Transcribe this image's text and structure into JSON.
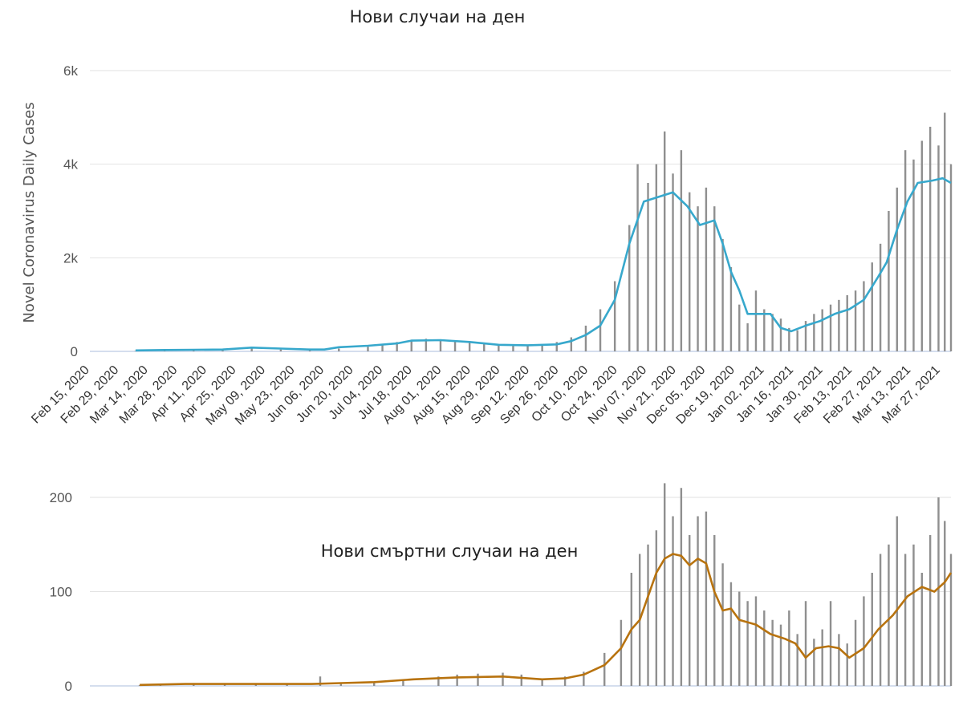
{
  "colors": {
    "bars": "#8f8f8f",
    "cases_line": "#37a8cc",
    "deaths_line": "#b8730f",
    "grid": "#e2e2e2",
    "baseline": "#c7d3e8"
  },
  "chart_data": [
    {
      "type": "bar",
      "title": "Нови случаи на ден",
      "ylabel": "Novel Coronavirus Daily Cases",
      "ylim": [
        0,
        6000
      ],
      "y_ticks": [
        "0",
        "2k",
        "4k",
        "6k"
      ],
      "x_ticks": [
        "Feb 15, 2020",
        "Feb 29, 2020",
        "Mar 14, 2020",
        "Mar 28, 2020",
        "Apr 11, 2020",
        "Apr 25, 2020",
        "May 09, 2020",
        "May 23, 2020",
        "Jun 06, 2020",
        "Jun 20, 2020",
        "Jul 04, 2020",
        "Jul 18, 2020",
        "Aug 01, 2020",
        "Aug 15, 2020",
        "Aug 29, 2020",
        "Sep 12, 2020",
        "Sep 26, 2020",
        "Oct 10, 2020",
        "Oct 24, 2020",
        "Nov 07, 2020",
        "Nov 21, 2020",
        "Dec 05, 2020",
        "Dec 19, 2020",
        "Jan 02, 2021",
        "Jan 16, 2021",
        "Jan 30, 2021",
        "Feb 13, 2021",
        "Feb 27, 2021",
        "Mar 13, 2021",
        "Mar 27, 2021"
      ],
      "x_range": [
        "2020-02-15",
        "2021-04-05"
      ],
      "series": [
        {
          "kind": "bars",
          "points": [
            [
              "2020-03-08",
              10
            ],
            [
              "2020-03-22",
              35
            ],
            [
              "2020-04-05",
              40
            ],
            [
              "2020-04-19",
              50
            ],
            [
              "2020-05-03",
              60
            ],
            [
              "2020-05-17",
              40
            ],
            [
              "2020-05-31",
              30
            ],
            [
              "2020-06-14",
              60
            ],
            [
              "2020-06-28",
              100
            ],
            [
              "2020-07-05",
              130
            ],
            [
              "2020-07-12",
              200
            ],
            [
              "2020-07-19",
              250
            ],
            [
              "2020-07-26",
              270
            ],
            [
              "2020-08-02",
              250
            ],
            [
              "2020-08-09",
              230
            ],
            [
              "2020-08-16",
              200
            ],
            [
              "2020-08-23",
              170
            ],
            [
              "2020-08-30",
              150
            ],
            [
              "2020-09-06",
              140
            ],
            [
              "2020-09-13",
              140
            ],
            [
              "2020-09-20",
              150
            ],
            [
              "2020-09-27",
              200
            ],
            [
              "2020-10-04",
              300
            ],
            [
              "2020-10-11",
              550
            ],
            [
              "2020-10-18",
              900
            ],
            [
              "2020-10-25",
              1500
            ],
            [
              "2020-11-01",
              2700
            ],
            [
              "2020-11-05",
              4000
            ],
            [
              "2020-11-10",
              3600
            ],
            [
              "2020-11-14",
              4000
            ],
            [
              "2020-11-18",
              4700
            ],
            [
              "2020-11-22",
              3800
            ],
            [
              "2020-11-26",
              4300
            ],
            [
              "2020-11-30",
              3400
            ],
            [
              "2020-12-04",
              3100
            ],
            [
              "2020-12-08",
              3500
            ],
            [
              "2020-12-12",
              3100
            ],
            [
              "2020-12-16",
              2400
            ],
            [
              "2020-12-20",
              1800
            ],
            [
              "2020-12-24",
              1000
            ],
            [
              "2020-12-28",
              600
            ],
            [
              "2021-01-01",
              1300
            ],
            [
              "2021-01-05",
              900
            ],
            [
              "2021-01-09",
              800
            ],
            [
              "2021-01-13",
              700
            ],
            [
              "2021-01-17",
              500
            ],
            [
              "2021-01-21",
              450
            ],
            [
              "2021-01-25",
              650
            ],
            [
              "2021-01-29",
              800
            ],
            [
              "2021-02-02",
              900
            ],
            [
              "2021-02-06",
              1000
            ],
            [
              "2021-02-10",
              1100
            ],
            [
              "2021-02-14",
              1200
            ],
            [
              "2021-02-18",
              1300
            ],
            [
              "2021-02-22",
              1500
            ],
            [
              "2021-02-26",
              1900
            ],
            [
              "2021-03-02",
              2300
            ],
            [
              "2021-03-06",
              3000
            ],
            [
              "2021-03-10",
              3500
            ],
            [
              "2021-03-14",
              4300
            ],
            [
              "2021-03-18",
              4100
            ],
            [
              "2021-03-22",
              4500
            ],
            [
              "2021-03-26",
              4800
            ],
            [
              "2021-03-30",
              4400
            ],
            [
              "2021-04-02",
              5100
            ],
            [
              "2021-04-05",
              4000
            ]
          ]
        },
        {
          "kind": "line",
          "points": [
            [
              "2020-03-08",
              20
            ],
            [
              "2020-03-22",
              30
            ],
            [
              "2020-04-05",
              35
            ],
            [
              "2020-04-19",
              40
            ],
            [
              "2020-05-03",
              80
            ],
            [
              "2020-05-17",
              60
            ],
            [
              "2020-05-31",
              40
            ],
            [
              "2020-06-07",
              40
            ],
            [
              "2020-06-14",
              90
            ],
            [
              "2020-06-28",
              120
            ],
            [
              "2020-07-12",
              170
            ],
            [
              "2020-07-19",
              230
            ],
            [
              "2020-08-02",
              240
            ],
            [
              "2020-08-16",
              200
            ],
            [
              "2020-08-30",
              140
            ],
            [
              "2020-09-13",
              130
            ],
            [
              "2020-09-27",
              150
            ],
            [
              "2020-10-04",
              220
            ],
            [
              "2020-10-11",
              350
            ],
            [
              "2020-10-18",
              550
            ],
            [
              "2020-10-25",
              1100
            ],
            [
              "2020-11-01",
              2300
            ],
            [
              "2020-11-08",
              3200
            ],
            [
              "2020-11-15",
              3300
            ],
            [
              "2020-11-22",
              3400
            ],
            [
              "2020-11-29",
              3100
            ],
            [
              "2020-12-05",
              2700
            ],
            [
              "2020-12-12",
              2800
            ],
            [
              "2020-12-16",
              2300
            ],
            [
              "2020-12-20",
              1700
            ],
            [
              "2020-12-24",
              1300
            ],
            [
              "2020-12-28",
              800
            ],
            [
              "2021-01-03",
              800
            ],
            [
              "2021-01-08",
              800
            ],
            [
              "2021-01-13",
              500
            ],
            [
              "2021-01-18",
              430
            ],
            [
              "2021-01-25",
              550
            ],
            [
              "2021-02-01",
              650
            ],
            [
              "2021-02-08",
              800
            ],
            [
              "2021-02-15",
              900
            ],
            [
              "2021-02-22",
              1100
            ],
            [
              "2021-03-01",
              1600
            ],
            [
              "2021-03-05",
              1900
            ],
            [
              "2021-03-10",
              2600
            ],
            [
              "2021-03-15",
              3200
            ],
            [
              "2021-03-20",
              3600
            ],
            [
              "2021-03-27",
              3650
            ],
            [
              "2021-04-01",
              3700
            ],
            [
              "2021-04-05",
              3600
            ]
          ]
        }
      ]
    },
    {
      "type": "bar",
      "title": "Нови смъртни случаи на ден",
      "ylabel": "",
      "ylim": [
        0,
        200
      ],
      "y_ticks": [
        "0",
        "100",
        "200"
      ],
      "x_range": [
        "2020-02-15",
        "2021-04-05"
      ],
      "series": [
        {
          "kind": "bars",
          "points": [
            [
              "2020-03-10",
              1
            ],
            [
              "2020-03-20",
              2
            ],
            [
              "2020-04-05",
              3
            ],
            [
              "2020-04-20",
              3
            ],
            [
              "2020-05-05",
              3
            ],
            [
              "2020-05-20",
              2
            ],
            [
              "2020-06-05",
              10
            ],
            [
              "2020-06-15",
              3
            ],
            [
              "2020-07-01",
              4
            ],
            [
              "2020-07-15",
              7
            ],
            [
              "2020-08-01",
              10
            ],
            [
              "2020-08-10",
              12
            ],
            [
              "2020-08-20",
              13
            ],
            [
              "2020-09-01",
              14
            ],
            [
              "2020-09-10",
              12
            ],
            [
              "2020-09-20",
              8
            ],
            [
              "2020-10-01",
              10
            ],
            [
              "2020-10-10",
              15
            ],
            [
              "2020-10-20",
              35
            ],
            [
              "2020-10-28",
              70
            ],
            [
              "2020-11-02",
              120
            ],
            [
              "2020-11-06",
              140
            ],
            [
              "2020-11-10",
              150
            ],
            [
              "2020-11-14",
              165
            ],
            [
              "2020-11-18",
              215
            ],
            [
              "2020-11-22",
              180
            ],
            [
              "2020-11-26",
              210
            ],
            [
              "2020-11-30",
              160
            ],
            [
              "2020-12-04",
              180
            ],
            [
              "2020-12-08",
              185
            ],
            [
              "2020-12-12",
              160
            ],
            [
              "2020-12-16",
              130
            ],
            [
              "2020-12-20",
              110
            ],
            [
              "2020-12-24",
              100
            ],
            [
              "2020-12-28",
              90
            ],
            [
              "2021-01-01",
              95
            ],
            [
              "2021-01-05",
              80
            ],
            [
              "2021-01-09",
              70
            ],
            [
              "2021-01-13",
              65
            ],
            [
              "2021-01-17",
              80
            ],
            [
              "2021-01-21",
              55
            ],
            [
              "2021-01-25",
              90
            ],
            [
              "2021-01-29",
              50
            ],
            [
              "2021-02-02",
              60
            ],
            [
              "2021-02-06",
              90
            ],
            [
              "2021-02-10",
              55
            ],
            [
              "2021-02-14",
              45
            ],
            [
              "2021-02-18",
              70
            ],
            [
              "2021-02-22",
              95
            ],
            [
              "2021-02-26",
              120
            ],
            [
              "2021-03-02",
              140
            ],
            [
              "2021-03-06",
              150
            ],
            [
              "2021-03-10",
              180
            ],
            [
              "2021-03-14",
              140
            ],
            [
              "2021-03-18",
              150
            ],
            [
              "2021-03-22",
              120
            ],
            [
              "2021-03-26",
              160
            ],
            [
              "2021-03-30",
              200
            ],
            [
              "2021-04-02",
              175
            ],
            [
              "2021-04-05",
              140
            ]
          ]
        },
        {
          "kind": "line",
          "points": [
            [
              "2020-03-10",
              1
            ],
            [
              "2020-04-01",
              2
            ],
            [
              "2020-05-01",
              2
            ],
            [
              "2020-06-01",
              2
            ],
            [
              "2020-06-15",
              3
            ],
            [
              "2020-07-01",
              4
            ],
            [
              "2020-07-20",
              7
            ],
            [
              "2020-08-10",
              9
            ],
            [
              "2020-09-01",
              10
            ],
            [
              "2020-09-20",
              7
            ],
            [
              "2020-10-01",
              8
            ],
            [
              "2020-10-10",
              12
            ],
            [
              "2020-10-20",
              22
            ],
            [
              "2020-10-28",
              40
            ],
            [
              "2020-11-02",
              60
            ],
            [
              "2020-11-06",
              70
            ],
            [
              "2020-11-10",
              95
            ],
            [
              "2020-11-14",
              120
            ],
            [
              "2020-11-18",
              135
            ],
            [
              "2020-11-22",
              140
            ],
            [
              "2020-11-26",
              138
            ],
            [
              "2020-11-30",
              128
            ],
            [
              "2020-12-04",
              135
            ],
            [
              "2020-12-08",
              130
            ],
            [
              "2020-12-12",
              100
            ],
            [
              "2020-12-16",
              80
            ],
            [
              "2020-12-20",
              82
            ],
            [
              "2020-12-24",
              70
            ],
            [
              "2021-01-01",
              65
            ],
            [
              "2021-01-08",
              55
            ],
            [
              "2021-01-15",
              50
            ],
            [
              "2021-01-20",
              45
            ],
            [
              "2021-01-25",
              30
            ],
            [
              "2021-01-30",
              40
            ],
            [
              "2021-02-05",
              42
            ],
            [
              "2021-02-10",
              40
            ],
            [
              "2021-02-15",
              30
            ],
            [
              "2021-02-22",
              40
            ],
            [
              "2021-03-01",
              60
            ],
            [
              "2021-03-08",
              75
            ],
            [
              "2021-03-15",
              95
            ],
            [
              "2021-03-22",
              105
            ],
            [
              "2021-03-28",
              100
            ],
            [
              "2021-04-02",
              110
            ],
            [
              "2021-04-05",
              120
            ]
          ]
        }
      ]
    }
  ]
}
